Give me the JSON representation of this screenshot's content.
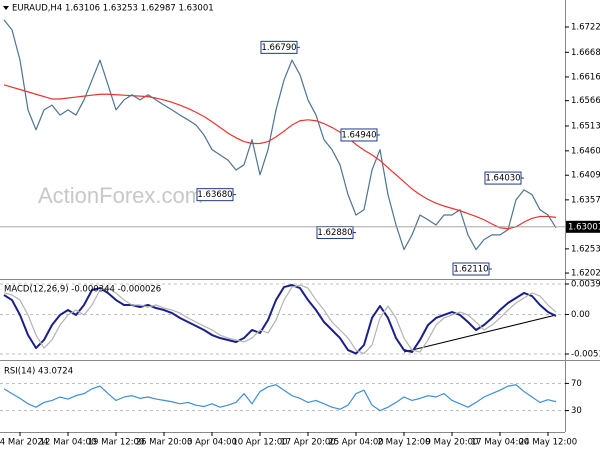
{
  "chart_data": [
    {
      "type": "line",
      "title": "EURAUD,H4  1.63106 1.63253 1.62987 1.63001",
      "watermark": "ActionForex.com",
      "categories": [
        null,
        null,
        "4 Mar 2024",
        null,
        null,
        null,
        null,
        null,
        "12 Mar 04:00",
        null,
        null,
        null,
        null,
        null,
        "19 Mar 12:00",
        null,
        null,
        null,
        null,
        null,
        "26 Mar 20:00",
        null,
        null,
        null,
        null,
        null,
        "3 Apr 04:00",
        null,
        null,
        null,
        null,
        null,
        "10 Apr 12:00",
        null,
        null,
        null,
        null,
        null,
        "17 Apr 20:00",
        null,
        null,
        null,
        null,
        null,
        "25 Apr 04:00",
        null,
        null,
        null,
        null,
        null,
        "2 May 12:00",
        null,
        null,
        null,
        null,
        null,
        "9 May 20:00",
        null,
        null,
        null,
        null,
        null,
        "17 May 04:00",
        null,
        null,
        null,
        null,
        null,
        "24 May 12:00",
        null
      ],
      "series": [
        {
          "color": "#4f7394",
          "values": [
            1.6737,
            1.6716,
            1.6652,
            1.6547,
            1.6505,
            1.6547,
            1.6557,
            1.6536,
            1.6547,
            1.6536,
            1.6568,
            1.661,
            1.6652,
            1.66,
            1.6547,
            1.6568,
            1.6579,
            1.6568,
            1.6579,
            1.6568,
            1.6557,
            1.6547,
            1.6536,
            1.6526,
            1.6515,
            1.6494,
            1.6463,
            1.6452,
            1.6441,
            1.642,
            1.6431,
            1.6484,
            1.641,
            1.6463,
            1.6547,
            1.661,
            1.6652,
            1.6621,
            1.6568,
            1.6536,
            1.6484,
            1.6463,
            1.6431,
            1.6368,
            1.6325,
            1.6336,
            1.642,
            1.6463,
            1.6368,
            1.6304,
            1.6252,
            1.6283,
            1.6325,
            1.6315,
            1.6304,
            1.6325,
            1.6325,
            1.6336,
            1.6283,
            1.6252,
            1.6273,
            1.6283,
            1.6283,
            1.6294,
            1.6357,
            1.6378,
            1.6368,
            1.6336,
            1.6325,
            1.6298
          ]
        },
        {
          "color": "#e8352e",
          "values": [
            1.66,
            1.6595,
            1.659,
            1.6585,
            1.658,
            1.6575,
            1.657,
            1.657,
            1.6572,
            1.6574,
            1.6576,
            1.6578,
            1.658,
            1.658,
            1.6579,
            1.6578,
            1.6577,
            1.6576,
            1.6575,
            1.6572,
            1.6568,
            1.6563,
            1.6557,
            1.655,
            1.6542,
            1.6533,
            1.6522,
            1.651,
            1.6498,
            1.6488,
            1.648,
            1.6476,
            1.6476,
            1.648,
            1.649,
            1.6502,
            1.6515,
            1.6524,
            1.6526,
            1.6524,
            1.6518,
            1.651,
            1.65,
            1.6488,
            1.6474,
            1.6462,
            1.6452,
            1.644,
            1.6425,
            1.641,
            1.6395,
            1.638,
            1.6368,
            1.6358,
            1.635,
            1.6344,
            1.6339,
            1.6334,
            1.6328,
            1.6322,
            1.6315,
            1.6306,
            1.6298,
            1.6296,
            1.63,
            1.631,
            1.6318,
            1.6322,
            1.6322,
            1.632
          ]
        }
      ],
      "annotations": [
        {
          "value": 1.6679,
          "label": "1.66790",
          "index": 37
        },
        {
          "value": 1.6368,
          "label": "1.63680",
          "index": 29
        },
        {
          "value": 1.6494,
          "label": "1.64940",
          "index": 47
        },
        {
          "value": 1.6288,
          "label": "1.62880",
          "index": 44
        },
        {
          "value": 1.6403,
          "label": "1.64030",
          "index": 65
        },
        {
          "value": 1.6211,
          "label": "1.62110",
          "index": 61
        }
      ],
      "last_price": 1.63001,
      "ylim": [
        1.6192,
        1.6779
      ],
      "yticks": [
        {
          "value": 1.6722,
          "label": "1.67220"
        },
        1.66685,
        1.66165,
        1.65665,
        {
          "value": 1.6513,
          "label": "1.65130"
        },
        1.64605,
        {
          "value": 1.6409,
          "label": "1.64090"
        },
        {
          "value": 1.6357,
          "label": "1.63570"
        },
        1.62535,
        1.62025
      ],
      "grid": false
    },
    {
      "type": "line",
      "title": "MACD(12,26,9) -0.000344 -0.000026",
      "series": [
        {
          "color": "#1a1f8c",
          "values": [
            0.00252,
            0.00187,
            -6e-05,
            -0.00265,
            -0.00433,
            -0.00329,
            -0.00136,
            -6e-05,
            0.00058,
            -6e-05,
            0.00123,
            0.00317,
            0.00342,
            0.00278,
            0.00187,
            0.00123,
            0.00123,
            0.00097,
            0.00123,
            0.00084,
            0.00058,
            0.00019,
            -0.00045,
            -0.00097,
            -0.00149,
            -0.002,
            -0.00265,
            -0.00304,
            -0.00329,
            -0.00355,
            -0.00304,
            -0.002,
            -0.00239,
            -0.00071,
            0.00187,
            0.00355,
            0.00381,
            0.00342,
            0.00187,
            0.00058,
            -0.00097,
            -0.002,
            -0.00304,
            -0.00459,
            -0.00505,
            -0.00394,
            -0.00045,
            0.0011,
            -0.00045,
            -0.00304,
            -0.00459,
            -0.00485,
            -0.00329,
            -0.00136,
            -0.00045,
            -6e-05,
            0.00032,
            -6e-05,
            -0.00097,
            -0.002,
            -0.00136,
            -0.00045,
            0.00058,
            0.00149,
            0.00213,
            0.00278,
            0.00239,
            0.00123,
            0.00032,
            -0.00019
          ]
        },
        {
          "color": "#b4b4b4",
          "values": [
            0.0028,
            0.00252,
            0.00187,
            -6e-05,
            -0.00265,
            -0.00433,
            -0.00329,
            -0.00136,
            -6e-05,
            0.00058,
            -6e-05,
            0.00123,
            0.00317,
            0.00342,
            0.00278,
            0.00187,
            0.00123,
            0.00123,
            0.00097,
            0.00123,
            0.00084,
            0.00058,
            0.00019,
            -0.00045,
            -0.00097,
            -0.00149,
            -0.002,
            -0.00265,
            -0.00304,
            -0.00329,
            -0.00355,
            -0.00304,
            -0.002,
            -0.00239,
            -0.00071,
            0.00187,
            0.00355,
            0.00381,
            0.00342,
            0.00187,
            0.00058,
            -0.00097,
            -0.002,
            -0.00304,
            -0.00459,
            -0.00505,
            -0.00394,
            -0.00045,
            0.0011,
            -0.00045,
            -0.00304,
            -0.00459,
            -0.00485,
            -0.00329,
            -0.00136,
            -0.00045,
            -6e-05,
            0.00032,
            -6e-05,
            -0.00097,
            -0.002,
            -0.00136,
            -0.00045,
            0.00058,
            0.00149,
            0.00213,
            0.00278,
            0.00239,
            0.00123,
            0.00032
          ]
        }
      ],
      "ylim": [
        -0.00562,
        0.00433
      ],
      "yticks": [
        0.003941,
        {
          "value": 0,
          "label": "0.00"
        },
        -0.005103
      ],
      "grid": true
    },
    {
      "type": "line",
      "title": "RSI(14) 43.0724",
      "series": [
        {
          "color": "#3d8fd9",
          "values": [
            62,
            55,
            48,
            40,
            35,
            42,
            45,
            50,
            47,
            52,
            55,
            62,
            66,
            55,
            45,
            50,
            52,
            48,
            50,
            47,
            45,
            43,
            40,
            42,
            38,
            36,
            40,
            35,
            38,
            42,
            55,
            40,
            58,
            65,
            68,
            60,
            52,
            48,
            42,
            45,
            40,
            35,
            32,
            38,
            55,
            60,
            38,
            30,
            35,
            42,
            50,
            45,
            48,
            52,
            50,
            55,
            45,
            40,
            35,
            42,
            50,
            55,
            60,
            66,
            68,
            58,
            50,
            42,
            46,
            43
          ]
        }
      ],
      "ylim": [
        0,
        100
      ],
      "yticks": [
        70,
        30
      ],
      "grid": true
    }
  ]
}
